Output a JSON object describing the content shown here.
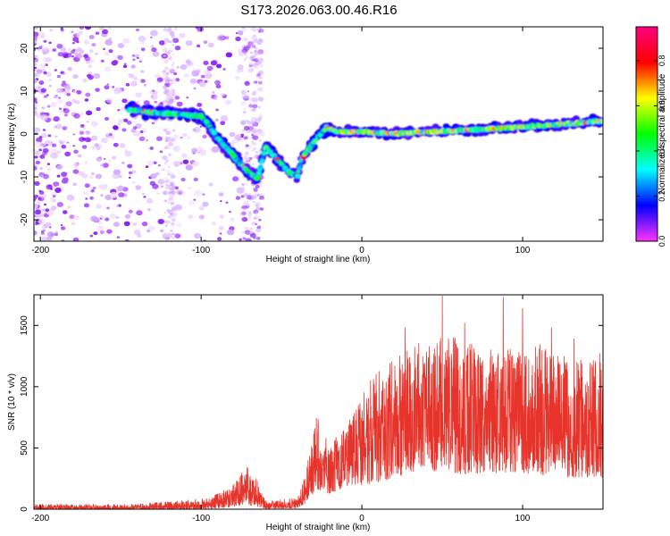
{
  "figure": {
    "title": "S173.2026.063.00.46.R16"
  },
  "chart_data": [
    {
      "type": "heatmap",
      "xlabel": "Height of straight line (km)",
      "ylabel": "Frequency (Hz)",
      "xlim": [
        -204,
        150
      ],
      "ylim": [
        -25,
        25
      ],
      "xticks": [
        -200,
        -100,
        0,
        100
      ],
      "yticks": [
        -20,
        -10,
        0,
        10,
        20
      ],
      "track": [
        {
          "x": -140,
          "y": 5.5
        },
        {
          "x": -130,
          "y": 5
        },
        {
          "x": -120,
          "y": 4.8
        },
        {
          "x": -110,
          "y": 4.5
        },
        {
          "x": -100,
          "y": 4.2
        },
        {
          "x": -95,
          "y": 2
        },
        {
          "x": -90,
          "y": -1
        },
        {
          "x": -85,
          "y": -3
        },
        {
          "x": -80,
          "y": -5
        },
        {
          "x": -75,
          "y": -7
        },
        {
          "x": -70,
          "y": -9
        },
        {
          "x": -65,
          "y": -10.5
        },
        {
          "x": -60,
          "y": -3
        },
        {
          "x": -55,
          "y": -5
        },
        {
          "x": -50,
          "y": -7
        },
        {
          "x": -45,
          "y": -9
        },
        {
          "x": -40,
          "y": -10
        },
        {
          "x": -38,
          "y": -6
        },
        {
          "x": -30,
          "y": -2
        },
        {
          "x": -22,
          "y": 1.5
        },
        {
          "x": -15,
          "y": 0.5
        },
        {
          "x": 0,
          "y": 0.5
        },
        {
          "x": 20,
          "y": 0
        },
        {
          "x": 40,
          "y": 0.5
        },
        {
          "x": 60,
          "y": 0.8
        },
        {
          "x": 80,
          "y": 1.2
        },
        {
          "x": 100,
          "y": 1.6
        },
        {
          "x": 120,
          "y": 2.2
        },
        {
          "x": 150,
          "y": 3
        }
      ],
      "colorbar": {
        "label": "Normalized spectral amplitude",
        "ticks": [
          "0.0",
          "0.2",
          "0.4",
          "0.6",
          "0.8"
        ],
        "range": [
          0,
          0.95
        ],
        "colors": [
          "#ff33ff",
          "#0000ff",
          "#00ffff",
          "#00ff00",
          "#ffff00",
          "#ff0000",
          "#ff0080"
        ]
      }
    },
    {
      "type": "line",
      "xlabel": "Height of straight line (km)",
      "ylabel": "SNR (10 * v/v)",
      "xlim": [
        -204,
        150
      ],
      "ylim": [
        0,
        1750
      ],
      "xticks": [
        -200,
        -100,
        0,
        100
      ],
      "yticks": [
        0,
        500,
        1000,
        1500
      ],
      "color": "#e8332a",
      "envelope": [
        {
          "x": -204,
          "lo": 0,
          "hi": 40
        },
        {
          "x": -150,
          "lo": 0,
          "hi": 40
        },
        {
          "x": -120,
          "lo": 0,
          "hi": 60
        },
        {
          "x": -95,
          "lo": 5,
          "hi": 90
        },
        {
          "x": -80,
          "lo": 20,
          "hi": 200
        },
        {
          "x": -72,
          "lo": 40,
          "hi": 350
        },
        {
          "x": -66,
          "lo": 20,
          "hi": 260
        },
        {
          "x": -60,
          "lo": 5,
          "hi": 70
        },
        {
          "x": -40,
          "lo": 10,
          "hi": 90
        },
        {
          "x": -36,
          "lo": 40,
          "hi": 250
        },
        {
          "x": -32,
          "lo": 100,
          "hi": 500
        },
        {
          "x": -28,
          "lo": 160,
          "hi": 780
        },
        {
          "x": -20,
          "lo": 120,
          "hi": 520
        },
        {
          "x": -5,
          "lo": 200,
          "hi": 780
        },
        {
          "x": 5,
          "lo": 200,
          "hi": 1050
        },
        {
          "x": 20,
          "lo": 260,
          "hi": 1250
        },
        {
          "x": 35,
          "lo": 300,
          "hi": 1350
        },
        {
          "x": 50,
          "lo": 300,
          "hi": 1450
        },
        {
          "x": 70,
          "lo": 280,
          "hi": 1350
        },
        {
          "x": 90,
          "lo": 300,
          "hi": 1300
        },
        {
          "x": 110,
          "lo": 280,
          "hi": 1350
        },
        {
          "x": 130,
          "lo": 260,
          "hi": 1250
        },
        {
          "x": 150,
          "lo": 250,
          "hi": 1200
        }
      ],
      "peaks": [
        {
          "x": 50,
          "y": 1740
        },
        {
          "x": 88,
          "y": 1730
        },
        {
          "x": 27,
          "y": 1480
        },
        {
          "x": 64,
          "y": 1520
        },
        {
          "x": 118,
          "y": 1480
        },
        {
          "x": 132,
          "y": 1390
        },
        {
          "x": 100,
          "y": 1640
        },
        {
          "x": 148,
          "y": 1270
        }
      ]
    }
  ]
}
